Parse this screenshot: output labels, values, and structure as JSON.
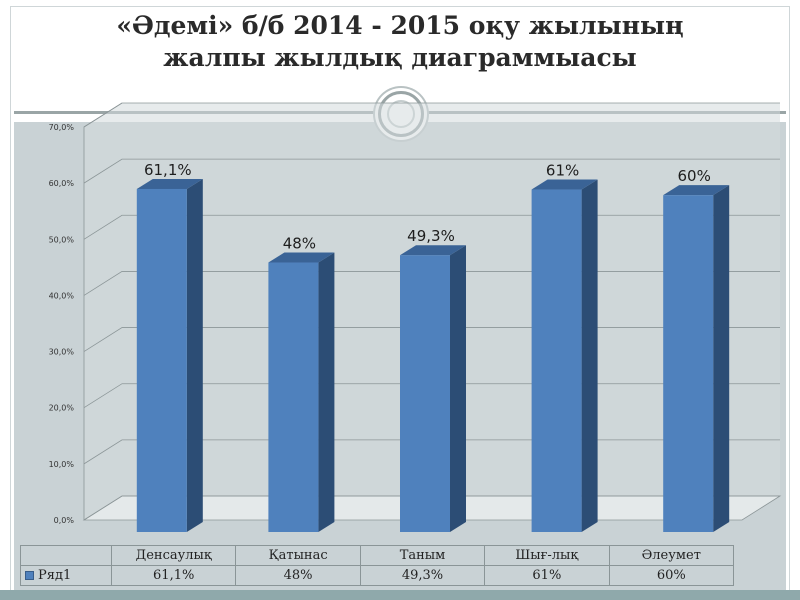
{
  "chart_data": {
    "type": "bar",
    "title": "«Әдемі» б/б 2014 - 2015 оқу жылының жалпы жылдық диаграммыасы",
    "title_lines": [
      "«Әдемі» б/б 2014 - 2015 оқу жылының",
      "жалпы жылдық диаграммыасы"
    ],
    "categories": [
      "Денсаулық",
      "Қатынас",
      "Таным",
      "Шығ-лық",
      "Әлеумет"
    ],
    "series": [
      {
        "name": "Ряд1",
        "values": [
          61.1,
          48,
          49.3,
          61,
          60
        ],
        "labels": [
          "61,1%",
          "48%",
          "49,3%",
          "61%",
          "60%"
        ],
        "table_labels": [
          "61,1%",
          "48%",
          "49,3%",
          "61%",
          "60%"
        ]
      }
    ],
    "ylim": [
      0,
      70
    ],
    "yticks": [
      "0,0%",
      "10,0%",
      "20,0%",
      "30,0%",
      "40,0%",
      "50,0%",
      "60,0%",
      "70,0%"
    ],
    "grid": true,
    "legend": "data-table",
    "colors": {
      "bar_front": "#4f81bd",
      "bar_side": "#2c4d75",
      "bar_top": "#3a6396",
      "wall": "#d3dadd",
      "grid": "#8c9698"
    }
  }
}
